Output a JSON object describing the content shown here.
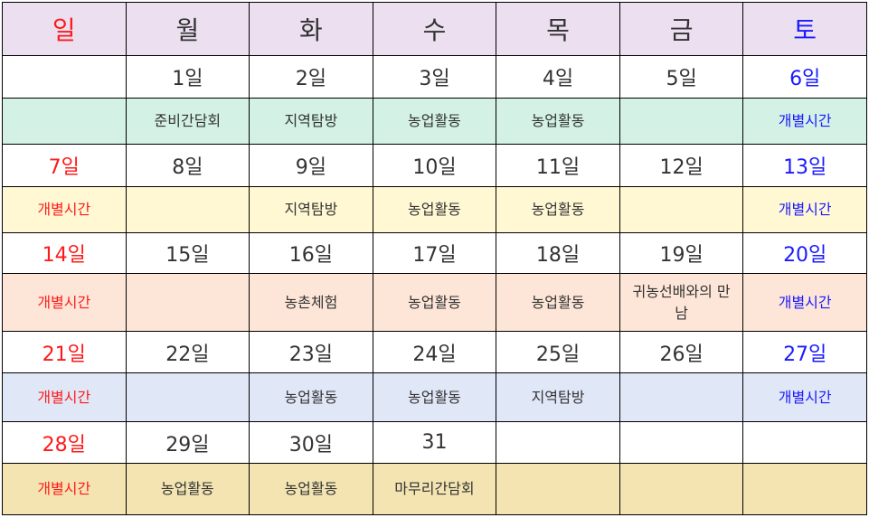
{
  "colors": {
    "sunday": "#ff1a1a",
    "saturday": "#1a1aff",
    "text": "#333333",
    "header_bg": "#ebdff0"
  },
  "weekdays": [
    "일",
    "월",
    "화",
    "수",
    "목",
    "금",
    "토"
  ],
  "weeks": [
    {
      "dates": [
        "",
        "1일",
        "2일",
        "3일",
        "4일",
        "5일",
        "6일"
      ],
      "activities": [
        "",
        "준비간담회",
        "지역탐방",
        "농업활동",
        "농업활동",
        "",
        "개별시간"
      ],
      "bg": "#d3f1e4"
    },
    {
      "dates": [
        "7일",
        "8일",
        "9일",
        "10일",
        "11일",
        "12일",
        "13일"
      ],
      "activities": [
        "개별시간",
        "",
        "지역탐방",
        "농업활동",
        "농업활동",
        "",
        "개별시간"
      ],
      "bg": "#fff8d3"
    },
    {
      "dates": [
        "14일",
        "15일",
        "16일",
        "17일",
        "18일",
        "19일",
        "20일"
      ],
      "activities": [
        "개별시간",
        "",
        "농촌체험",
        "농업활동",
        "농업활동",
        "귀농선배와의 만남",
        "개별시간"
      ],
      "bg": "#fde6d8"
    },
    {
      "dates": [
        "21일",
        "22일",
        "23일",
        "24일",
        "25일",
        "26일",
        "27일"
      ],
      "activities": [
        "개별시간",
        "",
        "농업활동",
        "농업활동",
        "지역탐방",
        "",
        "개별시간"
      ],
      "bg": "#e0e7f7"
    },
    {
      "dates": [
        "28일",
        "29일",
        "30일",
        "31",
        "",
        "",
        ""
      ],
      "activities": [
        "개별시간",
        "농업활동",
        "농업활동",
        "마무리간담회",
        "",
        "",
        ""
      ],
      "bg": "#f3e4b2"
    }
  ]
}
